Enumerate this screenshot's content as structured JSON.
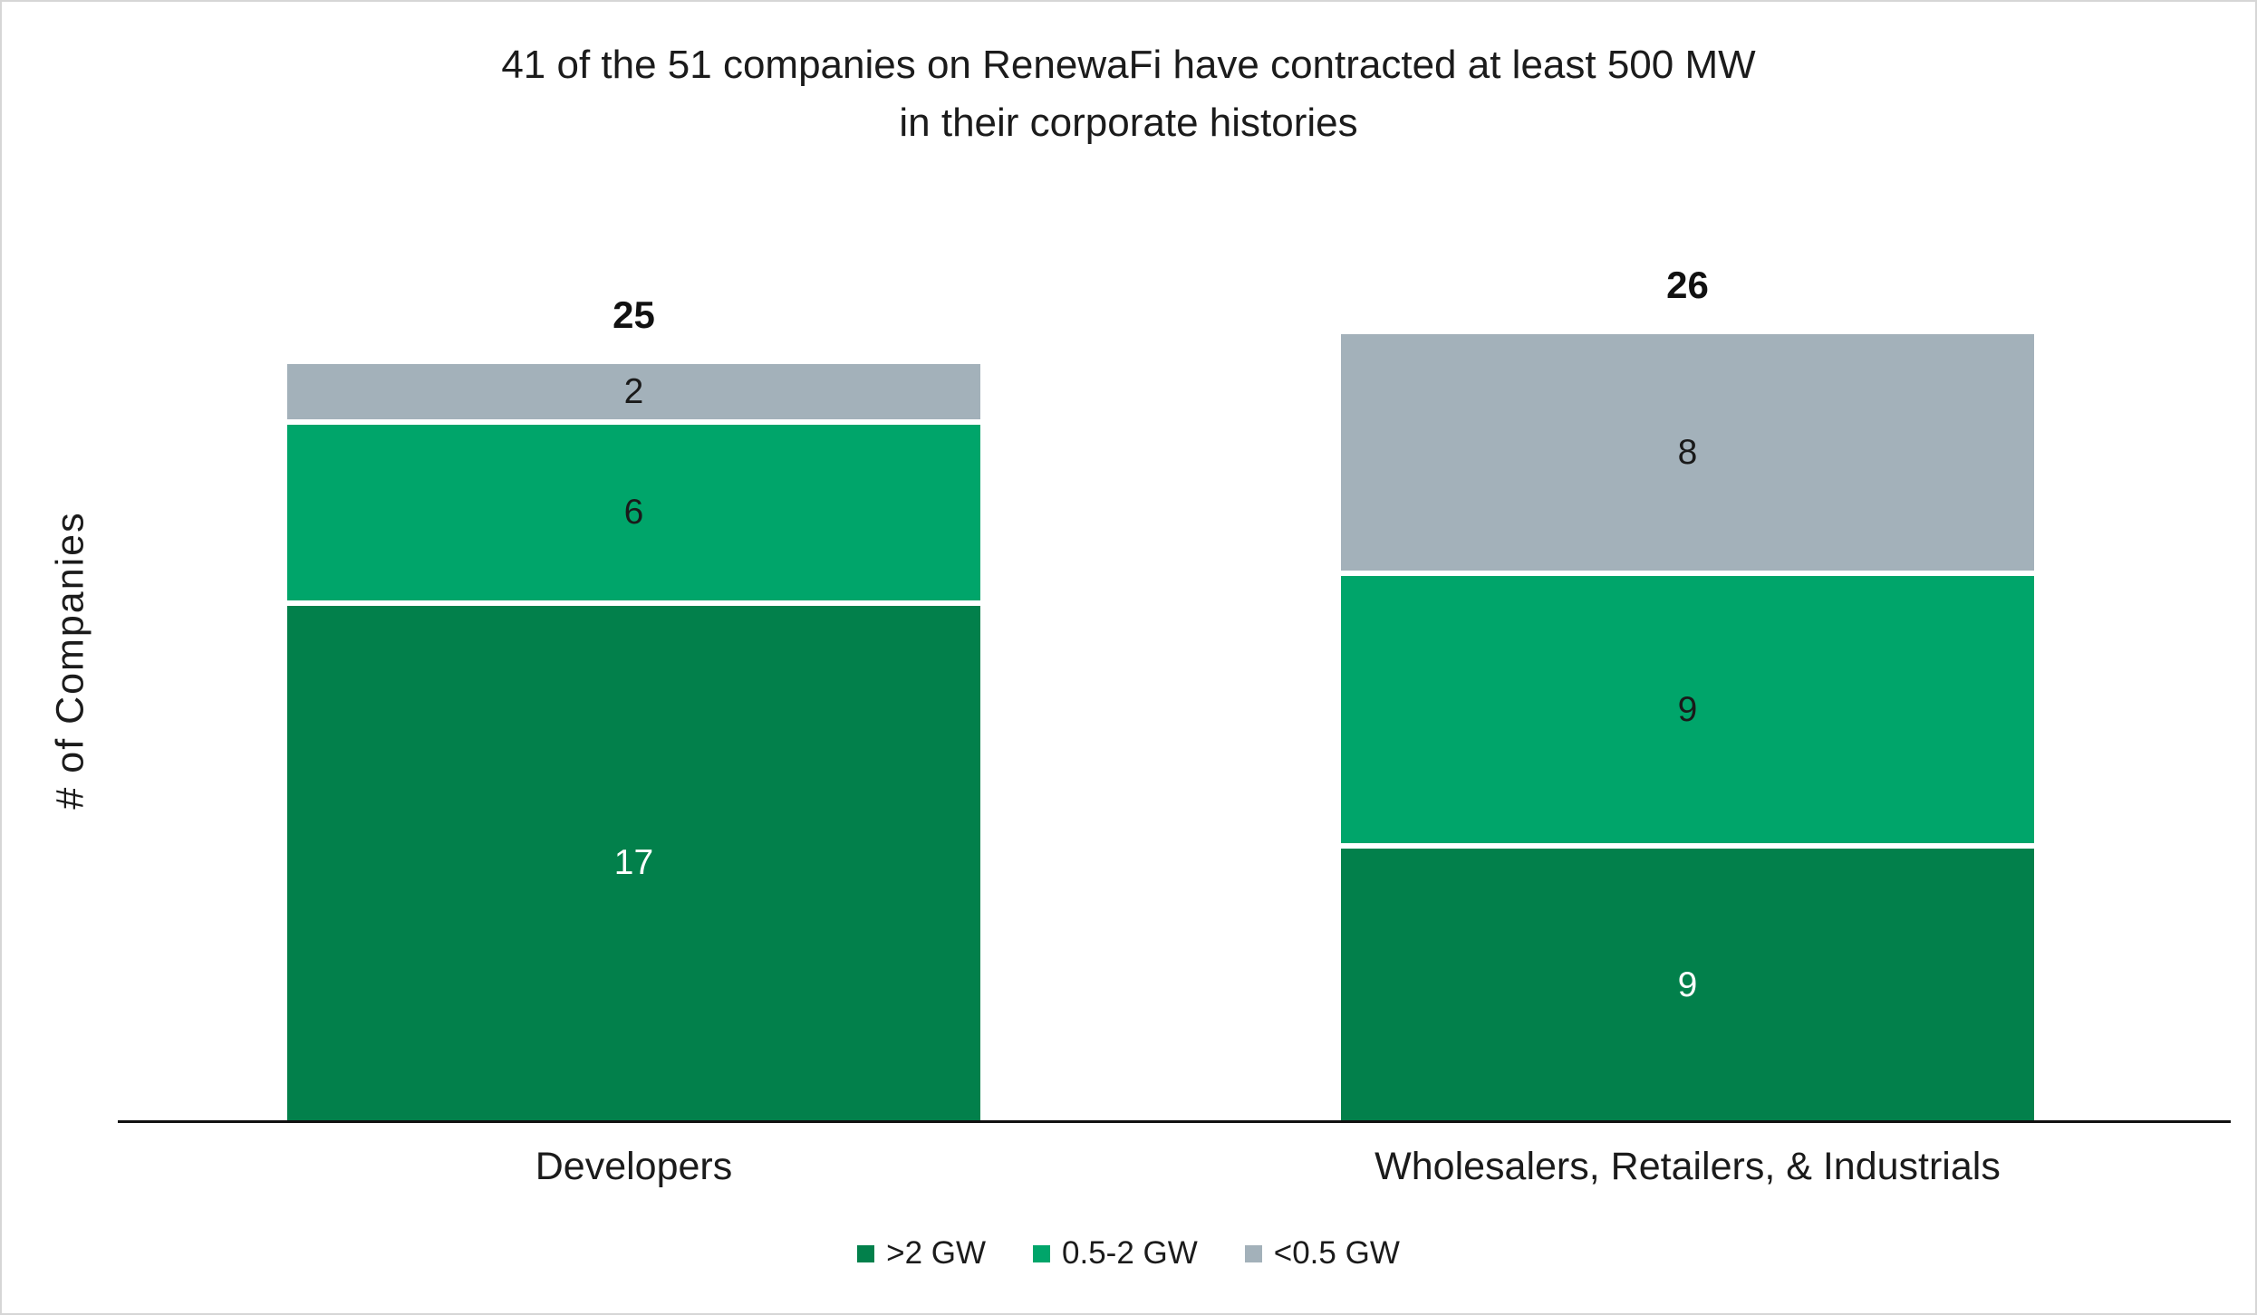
{
  "title": {
    "line1": "41 of the 51 companies on RenewaFi have contracted at least 500 MW",
    "line2": "in their corporate histories"
  },
  "y_axis_label": "# of Companies",
  "colors": {
    "dark_green": "#02804B",
    "medium_green": "#00A56A",
    "gray": "#A3B1BA",
    "axis": "#111111",
    "label_on_dark": "#FFFFFF",
    "label_on_light": "#1A1A1A"
  },
  "chart_data": {
    "type": "bar",
    "stacked": true,
    "title": "41 of the 51 companies on RenewaFi have contracted at least 500 MW in their corporate histories",
    "xlabel": "",
    "ylabel": "# of Companies",
    "categories": [
      "Developers",
      "Wholesalers, Retailers, & Industrials"
    ],
    "series": [
      {
        "name": ">2 GW",
        "color": "#02804B",
        "label_color": "#FFFFFF",
        "values": [
          17,
          9
        ]
      },
      {
        "name": "0.5-2 GW",
        "color": "#00A56A",
        "label_color": "#1A1A1A",
        "values": [
          6,
          9
        ]
      },
      {
        "name": "<0.5 GW",
        "color": "#A3B1BA",
        "label_color": "#1A1A1A",
        "values": [
          2,
          8
        ]
      }
    ],
    "totals": [
      25,
      26
    ],
    "ylim": [
      0,
      26
    ],
    "grid": false,
    "y_ticks_visible": false,
    "legend_position": "bottom",
    "legend_entries": [
      ">2 GW",
      "0.5-2 GW",
      "<0.5 GW"
    ]
  }
}
